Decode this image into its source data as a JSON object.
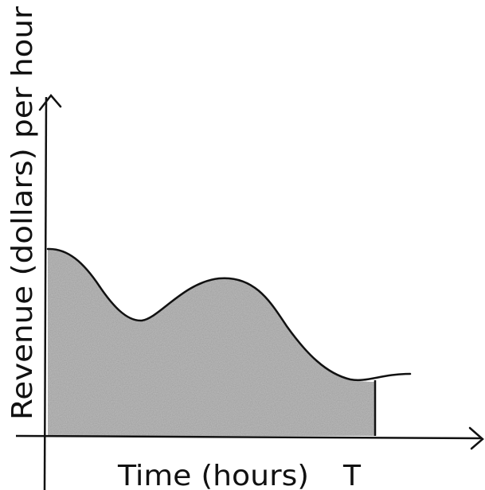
{
  "y_axis_label": "Revenue (dollars) per hour",
  "x_axis_label": "Time (hours)",
  "x_marker": "T"
}
